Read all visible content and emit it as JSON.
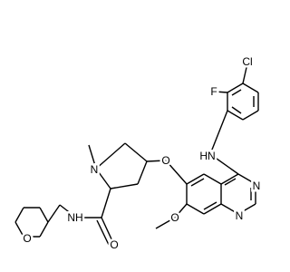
{
  "atoms": [
    "Cl",
    "F",
    "HN",
    "N",
    "N",
    "O",
    "O",
    "N",
    "O",
    "NH",
    "O"
  ]
}
